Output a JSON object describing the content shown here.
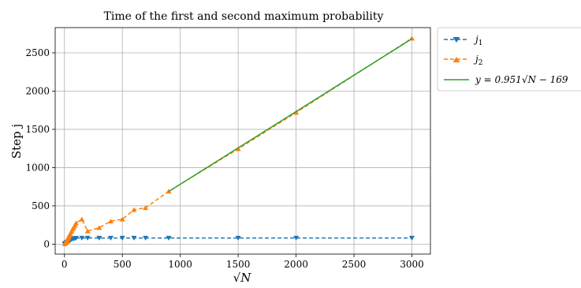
{
  "chart_data": {
    "type": "line",
    "title": "Time of the first and second maximum probability",
    "xlabel": "√N",
    "ylabel": "Step j",
    "xlim": [
      -80,
      3160
    ],
    "ylim": [
      -130,
      2830
    ],
    "xticks": [
      0,
      500,
      1000,
      1500,
      2000,
      2500,
      3000
    ],
    "yticks": [
      0,
      500,
      1000,
      1500,
      2000,
      2500
    ],
    "grid": true,
    "legend_position": "outside-right-top",
    "series": [
      {
        "name": "j1",
        "legend_main": "j",
        "legend_sub": "1",
        "style": "dashed",
        "marker": "triangle-down",
        "color": "#1f77b4",
        "x": [
          2,
          5,
          10,
          15,
          20,
          25,
          30,
          35,
          40,
          45,
          50,
          60,
          70,
          80,
          90,
          100,
          150,
          200,
          300,
          400,
          500,
          600,
          700,
          900,
          1500,
          2000,
          3000
        ],
        "y": [
          2,
          5,
          10,
          15,
          20,
          25,
          30,
          35,
          40,
          45,
          50,
          60,
          68,
          72,
          75,
          78,
          80,
          80,
          80,
          80,
          80,
          80,
          80,
          80,
          80,
          80,
          80
        ]
      },
      {
        "name": "j2",
        "legend_main": "j",
        "legend_sub": "2",
        "style": "dashed",
        "marker": "triangle-up",
        "color": "#ff7f0e",
        "x": [
          2,
          5,
          10,
          15,
          20,
          25,
          30,
          35,
          40,
          45,
          50,
          60,
          70,
          80,
          90,
          100,
          150,
          200,
          300,
          400,
          500,
          600,
          700,
          900,
          1500,
          2000,
          3000
        ],
        "y": [
          5,
          10,
          20,
          30,
          45,
          60,
          75,
          90,
          105,
          120,
          135,
          165,
          195,
          220,
          245,
          275,
          325,
          170,
          215,
          300,
          325,
          450,
          475,
          690,
          1245,
          1720,
          2690
        ]
      },
      {
        "name": "fit",
        "legend_label": "y = 0.951√N − 169",
        "style": "solid",
        "marker": "none",
        "color": "#2ca02c",
        "x": [
          900,
          3000
        ],
        "y": [
          687,
          2684
        ]
      }
    ]
  }
}
